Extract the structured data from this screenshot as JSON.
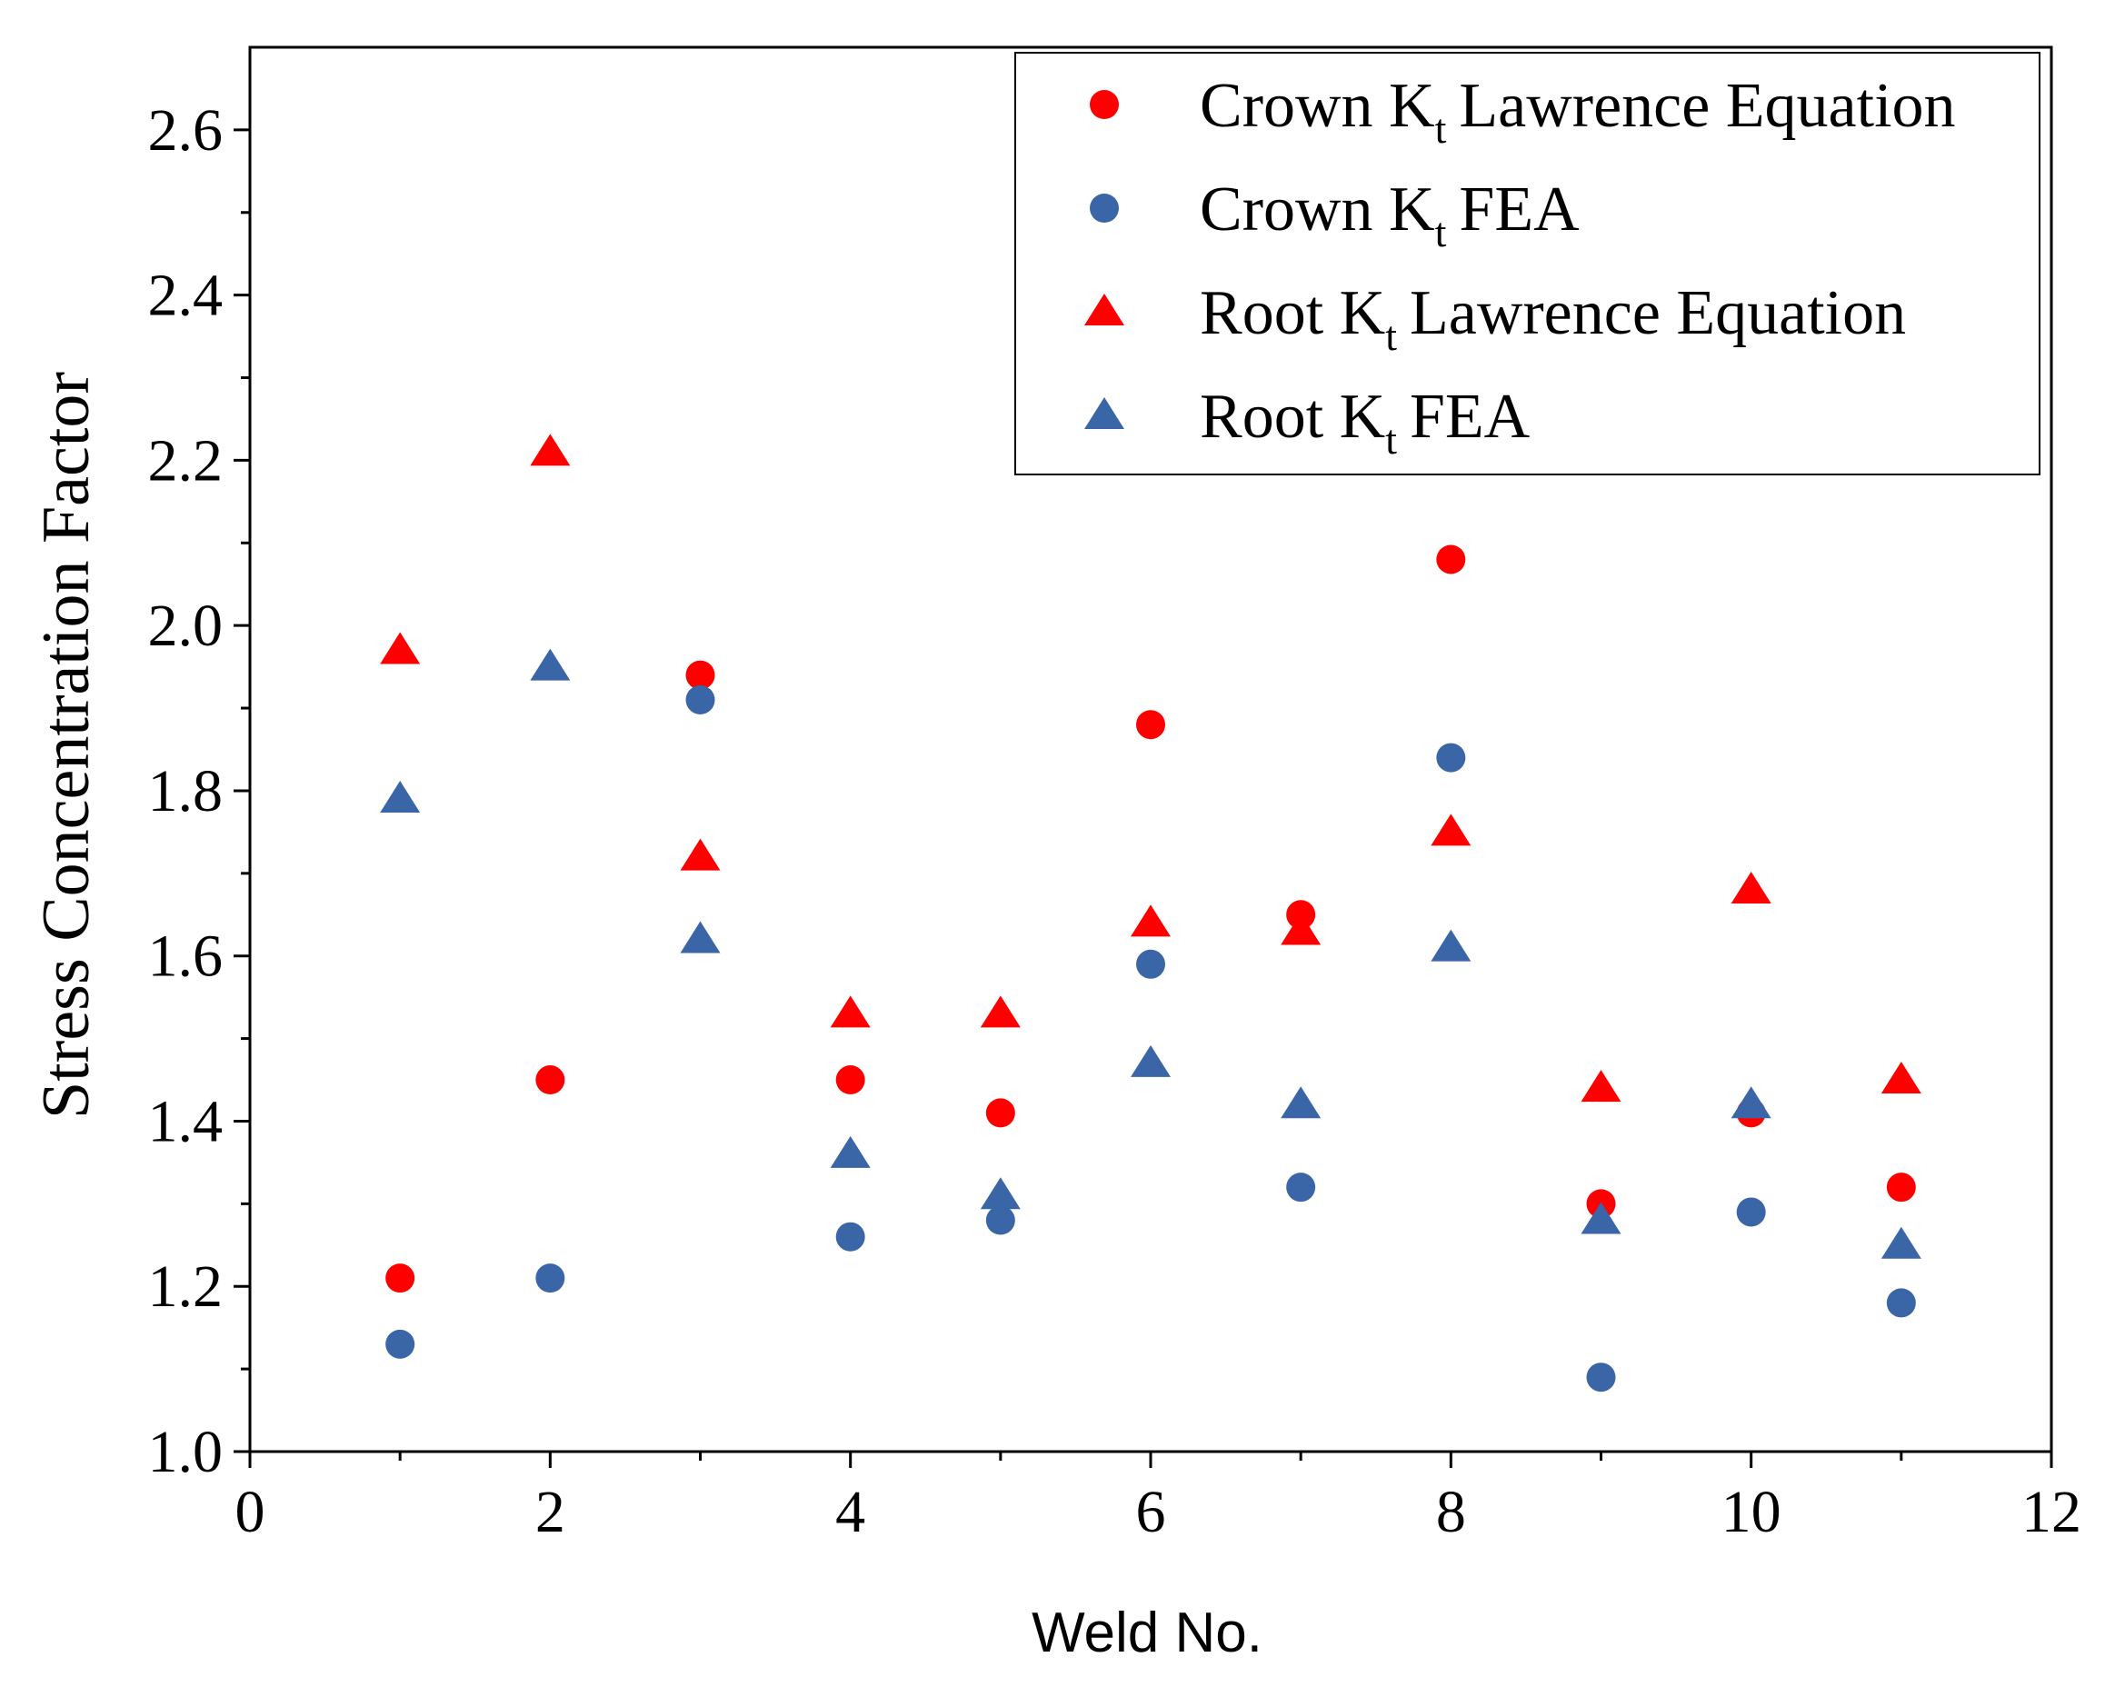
{
  "chart_data": {
    "type": "scatter",
    "title": "",
    "xlabel": "Weld No.",
    "ylabel": "Stress Concentration Factor",
    "xlim": [
      0,
      12
    ],
    "ylim": [
      1.0,
      2.7
    ],
    "x_ticks": [
      "0",
      "2",
      "4",
      "6",
      "8",
      "10",
      "12"
    ],
    "y_ticks": [
      "1.0",
      "1.2",
      "1.4",
      "1.6",
      "1.8",
      "2.0",
      "2.2",
      "2.4",
      "2.6"
    ],
    "x_tick_values": [
      0,
      2,
      4,
      6,
      8,
      10,
      12
    ],
    "y_tick_values": [
      1.0,
      1.2,
      1.4,
      1.6,
      1.8,
      2.0,
      2.2,
      2.4,
      2.6
    ],
    "grid": false,
    "legend_position": "top-right",
    "x": [
      1,
      2,
      3,
      4,
      5,
      6,
      7,
      8,
      9,
      10,
      11
    ],
    "series": [
      {
        "name": "Crown Kt Lawrence Equation",
        "label_main": "Crown K",
        "label_sub": "t",
        "label_rest": "Lawrence Equation",
        "marker": "circle",
        "color": "#ff0000",
        "values": [
          1.21,
          1.45,
          1.94,
          1.45,
          1.41,
          1.88,
          1.65,
          2.08,
          1.3,
          1.41,
          1.32
        ]
      },
      {
        "name": "Crown Kt FEA",
        "label_main": "Crown K",
        "label_sub": "t",
        "label_rest": "FEA",
        "marker": "circle",
        "color": "#3a66a8",
        "values": [
          1.13,
          1.21,
          1.91,
          1.26,
          1.28,
          1.59,
          1.32,
          1.84,
          1.09,
          1.29,
          1.18
        ]
      },
      {
        "name": "Root Kt Lawrence Equation",
        "label_main": "Root K",
        "label_sub": "t",
        "label_rest": "Lawrence Equation",
        "marker": "triangle",
        "color": "#ff0000",
        "values": [
          1.97,
          2.21,
          1.72,
          1.53,
          1.53,
          1.64,
          1.63,
          1.75,
          1.44,
          1.68,
          1.45
        ]
      },
      {
        "name": "Root Kt FEA",
        "label_main": "Root K",
        "label_sub": "t",
        "label_rest": "FEA",
        "marker": "triangle",
        "color": "#3a66a8",
        "values": [
          1.79,
          1.95,
          1.62,
          1.36,
          1.31,
          1.47,
          1.42,
          1.61,
          1.28,
          1.42,
          1.25
        ]
      }
    ]
  }
}
